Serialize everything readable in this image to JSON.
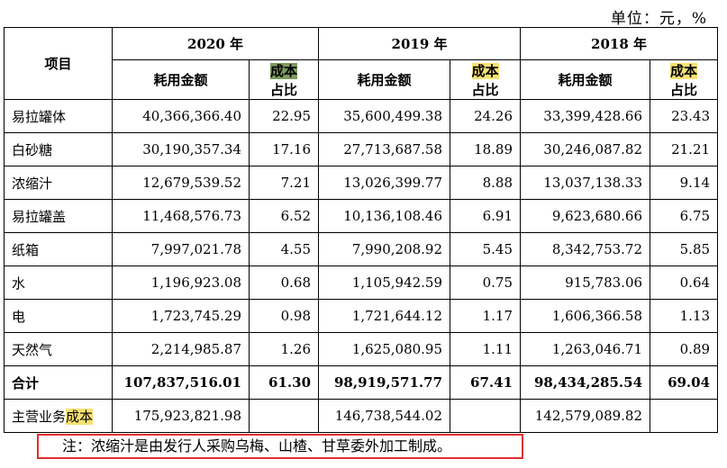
{
  "unit_label": "单位：元，%",
  "header": {
    "item_label": "项目",
    "years": [
      "2020 年",
      "2019 年",
      "2018 年"
    ],
    "amount_label": "耗用金额",
    "ratio_highlight": "成本",
    "ratio_rest": "占比"
  },
  "rows": [
    {
      "item": "易拉罐体",
      "v2020": "40,366,366.40",
      "p2020": "22.95",
      "v2019": "35,600,499.38",
      "p2019": "24.26",
      "v2018": "33,399,428.66",
      "p2018": "23.43"
    },
    {
      "item": "白砂糖",
      "v2020": "30,190,357.34",
      "p2020": "17.16",
      "v2019": "27,713,687.58",
      "p2019": "18.89",
      "v2018": "30,246,087.82",
      "p2018": "21.21"
    },
    {
      "item": "浓缩汁",
      "v2020": "12,679,539.52",
      "p2020": "7.21",
      "v2019": "13,026,399.77",
      "p2019": "8.88",
      "v2018": "13,037,138.33",
      "p2018": "9.14"
    },
    {
      "item": "易拉罐盖",
      "v2020": "11,468,576.73",
      "p2020": "6.52",
      "v2019": "10,136,108.46",
      "p2019": "6.91",
      "v2018": "9,623,680.66",
      "p2018": "6.75"
    },
    {
      "item": "纸箱",
      "v2020": "7,997,021.78",
      "p2020": "4.55",
      "v2019": "7,990,208.92",
      "p2019": "5.45",
      "v2018": "8,342,753.72",
      "p2018": "5.85"
    },
    {
      "item": "水",
      "v2020": "1,196,923.08",
      "p2020": "0.68",
      "v2019": "1,105,942.59",
      "p2019": "0.75",
      "v2018": "915,783.06",
      "p2018": "0.64"
    },
    {
      "item": "电",
      "v2020": "1,723,745.29",
      "p2020": "0.98",
      "v2019": "1,721,644.12",
      "p2019": "1.17",
      "v2018": "1,606,366.58",
      "p2018": "1.13"
    },
    {
      "item": "天然气",
      "v2020": "2,214,985.87",
      "p2020": "1.26",
      "v2019": "1,625,080.95",
      "p2019": "1.11",
      "v2018": "1,263,046.71",
      "p2018": "0.89"
    }
  ],
  "total": {
    "item": "合计",
    "v2020": "107,837,516.01",
    "p2020": "61.30",
    "v2019": "98,919,571.77",
    "p2019": "67.41",
    "v2018": "98,434,285.54",
    "p2018": "69.04"
  },
  "main_cost": {
    "item_prefix": "主营业务",
    "item_highlight": "成本",
    "v2020": "175,923,821.98",
    "v2019": "146,738,544.02",
    "v2018": "142,579,089.82"
  },
  "note": "注：浓缩汁是由发行人采购乌梅、山楂、甘草委外加工制成。",
  "colors": {
    "highlight_yellow": "#f7e173",
    "highlight_green": "#7c9a5e",
    "note_border": "#e03030"
  }
}
